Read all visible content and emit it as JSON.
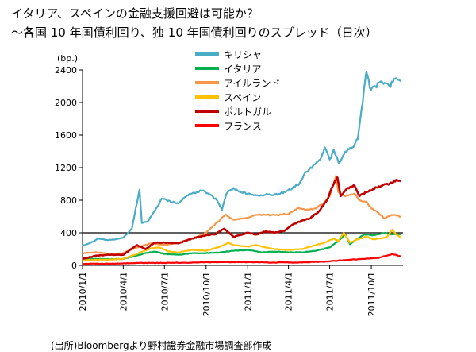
{
  "title_line1": "イタリア、スペインの金融支援回避は可能か？",
  "title_line2": "〜各国 10 年国債利回り、独 10 年国債利回りのスプレッド（日次）",
  "source": "(出所)Bloombergより野村證券金融市場調査部作成",
  "chart_data": {
    "type": "line",
    "title": "",
    "unit_label": "(bp.)",
    "xlabel": "",
    "ylabel": "",
    "ylim": [
      0,
      2400
    ],
    "yticks": [
      0,
      400,
      800,
      1200,
      1600,
      2000,
      2400
    ],
    "xlim": [
      "2010-01-01",
      "2011-12-10"
    ],
    "xticks": [
      {
        "date": "2010-01-01",
        "label": "2010/1/1"
      },
      {
        "date": "2010-04-01",
        "label": "2010/4/1"
      },
      {
        "date": "2010-07-01",
        "label": "2010/7/1"
      },
      {
        "date": "2010-10-01",
        "label": "2010/10/1"
      },
      {
        "date": "2011-01-01",
        "label": "2011/1/1"
      },
      {
        "date": "2011-04-01",
        "label": "2011/4/1"
      },
      {
        "date": "2011-07-01",
        "label": "2011/7/1"
      },
      {
        "date": "2011-10-01",
        "label": "2011/10/1"
      }
    ],
    "reference_line": 400,
    "legend_position": "top-center",
    "grid": false,
    "series": [
      {
        "name": "キリシャ",
        "color": "#4bacc6",
        "points": [
          [
            "2010-01-01",
            240
          ],
          [
            "2010-01-20",
            280
          ],
          [
            "2010-02-05",
            330
          ],
          [
            "2010-02-25",
            310
          ],
          [
            "2010-03-15",
            320
          ],
          [
            "2010-04-01",
            340
          ],
          [
            "2010-04-20",
            450
          ],
          [
            "2010-05-07",
            930
          ],
          [
            "2010-05-12",
            520
          ],
          [
            "2010-05-25",
            540
          ],
          [
            "2010-06-15",
            720
          ],
          [
            "2010-06-25",
            820
          ],
          [
            "2010-07-15",
            780
          ],
          [
            "2010-08-01",
            760
          ],
          [
            "2010-08-20",
            860
          ],
          [
            "2010-09-10",
            900
          ],
          [
            "2010-09-25",
            920
          ],
          [
            "2010-10-10",
            870
          ],
          [
            "2010-10-25",
            800
          ],
          [
            "2010-11-05",
            680
          ],
          [
            "2010-11-15",
            880
          ],
          [
            "2010-11-30",
            950
          ],
          [
            "2010-12-15",
            900
          ],
          [
            "2011-01-01",
            880
          ],
          [
            "2011-01-20",
            860
          ],
          [
            "2011-02-10",
            870
          ],
          [
            "2011-02-25",
            860
          ],
          [
            "2011-03-10",
            880
          ],
          [
            "2011-03-25",
            900
          ],
          [
            "2011-04-10",
            950
          ],
          [
            "2011-04-25",
            1000
          ],
          [
            "2011-05-10",
            1150
          ],
          [
            "2011-05-25",
            1220
          ],
          [
            "2011-06-10",
            1300
          ],
          [
            "2011-06-20",
            1450
          ],
          [
            "2011-07-01",
            1300
          ],
          [
            "2011-07-10",
            1420
          ],
          [
            "2011-07-22",
            1250
          ],
          [
            "2011-08-05",
            1400
          ],
          [
            "2011-08-20",
            1450
          ],
          [
            "2011-09-01",
            1550
          ],
          [
            "2011-09-12",
            2000
          ],
          [
            "2011-09-20",
            2380
          ],
          [
            "2011-09-30",
            2150
          ],
          [
            "2011-10-10",
            2200
          ],
          [
            "2011-10-25",
            2250
          ],
          [
            "2011-11-10",
            2200
          ],
          [
            "2011-11-25",
            2300
          ],
          [
            "2011-12-05",
            2260
          ]
        ]
      },
      {
        "name": "イタリア",
        "color": "#00b050",
        "points": [
          [
            "2010-01-01",
            80
          ],
          [
            "2010-02-01",
            80
          ],
          [
            "2010-03-01",
            75
          ],
          [
            "2010-04-01",
            80
          ],
          [
            "2010-05-01",
            120
          ],
          [
            "2010-05-20",
            150
          ],
          [
            "2010-06-10",
            170
          ],
          [
            "2010-07-01",
            140
          ],
          [
            "2010-08-01",
            130
          ],
          [
            "2010-09-01",
            150
          ],
          [
            "2010-10-01",
            150
          ],
          [
            "2010-11-01",
            160
          ],
          [
            "2010-12-01",
            180
          ],
          [
            "2011-01-01",
            190
          ],
          [
            "2011-02-01",
            160
          ],
          [
            "2011-03-01",
            170
          ],
          [
            "2011-04-01",
            160
          ],
          [
            "2011-05-01",
            160
          ],
          [
            "2011-06-01",
            180
          ],
          [
            "2011-07-01",
            220
          ],
          [
            "2011-07-20",
            300
          ],
          [
            "2011-08-05",
            380
          ],
          [
            "2011-08-15",
            260
          ],
          [
            "2011-09-01",
            330
          ],
          [
            "2011-09-15",
            380
          ],
          [
            "2011-10-01",
            370
          ],
          [
            "2011-10-15",
            380
          ],
          [
            "2011-11-01",
            400
          ],
          [
            "2011-11-15",
            380
          ],
          [
            "2011-12-05",
            380
          ]
        ]
      },
      {
        "name": "アイルランド",
        "color": "#f79646",
        "points": [
          [
            "2010-01-01",
            150
          ],
          [
            "2010-02-01",
            160
          ],
          [
            "2010-03-01",
            140
          ],
          [
            "2010-04-01",
            150
          ],
          [
            "2010-05-01",
            220
          ],
          [
            "2010-06-01",
            270
          ],
          [
            "2010-07-01",
            250
          ],
          [
            "2010-08-01",
            280
          ],
          [
            "2010-09-01",
            330
          ],
          [
            "2010-10-01",
            400
          ],
          [
            "2010-11-01",
            560
          ],
          [
            "2010-11-12",
            620
          ],
          [
            "2010-12-01",
            560
          ],
          [
            "2011-01-01",
            580
          ],
          [
            "2011-01-20",
            620
          ],
          [
            "2011-02-10",
            620
          ],
          [
            "2011-03-01",
            620
          ],
          [
            "2011-04-01",
            630
          ],
          [
            "2011-04-20",
            700
          ],
          [
            "2011-05-10",
            680
          ],
          [
            "2011-06-01",
            700
          ],
          [
            "2011-06-20",
            780
          ],
          [
            "2011-07-01",
            850
          ],
          [
            "2011-07-15",
            1100
          ],
          [
            "2011-07-20",
            900
          ],
          [
            "2011-08-05",
            850
          ],
          [
            "2011-08-25",
            880
          ],
          [
            "2011-09-05",
            800
          ],
          [
            "2011-09-20",
            780
          ],
          [
            "2011-10-01",
            700
          ],
          [
            "2011-10-15",
            650
          ],
          [
            "2011-10-30",
            580
          ],
          [
            "2011-11-15",
            620
          ],
          [
            "2011-12-05",
            600
          ]
        ]
      },
      {
        "name": "スペイン",
        "color": "#ffc000",
        "points": [
          [
            "2010-01-01",
            60
          ],
          [
            "2010-02-01",
            70
          ],
          [
            "2010-03-01",
            70
          ],
          [
            "2010-04-01",
            80
          ],
          [
            "2010-05-01",
            140
          ],
          [
            "2010-06-01",
            210
          ],
          [
            "2010-06-20",
            220
          ],
          [
            "2010-07-10",
            170
          ],
          [
            "2010-08-01",
            160
          ],
          [
            "2010-09-01",
            190
          ],
          [
            "2010-10-01",
            180
          ],
          [
            "2010-11-01",
            230
          ],
          [
            "2010-11-20",
            280
          ],
          [
            "2010-12-01",
            250
          ],
          [
            "2011-01-01",
            230
          ],
          [
            "2011-01-20",
            250
          ],
          [
            "2011-02-10",
            220
          ],
          [
            "2011-03-01",
            200
          ],
          [
            "2011-04-01",
            190
          ],
          [
            "2011-05-01",
            200
          ],
          [
            "2011-06-01",
            250
          ],
          [
            "2011-06-20",
            280
          ],
          [
            "2011-07-10",
            330
          ],
          [
            "2011-07-20",
            300
          ],
          [
            "2011-08-01",
            400
          ],
          [
            "2011-08-15",
            280
          ],
          [
            "2011-09-01",
            320
          ],
          [
            "2011-09-20",
            350
          ],
          [
            "2011-10-05",
            320
          ],
          [
            "2011-10-20",
            330
          ],
          [
            "2011-11-05",
            350
          ],
          [
            "2011-11-17",
            440
          ],
          [
            "2011-11-25",
            380
          ],
          [
            "2011-12-05",
            340
          ]
        ]
      },
      {
        "name": "ポルトガル",
        "color": "#c00000",
        "points": [
          [
            "2010-01-01",
            80
          ],
          [
            "2010-02-01",
            120
          ],
          [
            "2010-03-01",
            130
          ],
          [
            "2010-04-01",
            130
          ],
          [
            "2010-05-01",
            250
          ],
          [
            "2010-05-20",
            200
          ],
          [
            "2010-06-10",
            280
          ],
          [
            "2010-07-01",
            280
          ],
          [
            "2010-08-01",
            270
          ],
          [
            "2010-09-01",
            330
          ],
          [
            "2010-10-01",
            370
          ],
          [
            "2010-10-20",
            380
          ],
          [
            "2010-11-10",
            450
          ],
          [
            "2010-12-01",
            350
          ],
          [
            "2011-01-01",
            400
          ],
          [
            "2011-01-20",
            380
          ],
          [
            "2011-02-10",
            420
          ],
          [
            "2011-03-01",
            400
          ],
          [
            "2011-03-25",
            430
          ],
          [
            "2011-04-10",
            500
          ],
          [
            "2011-05-01",
            550
          ],
          [
            "2011-05-20",
            580
          ],
          [
            "2011-06-10",
            680
          ],
          [
            "2011-06-25",
            800
          ],
          [
            "2011-07-10",
            1000
          ],
          [
            "2011-07-18",
            1080
          ],
          [
            "2011-07-25",
            850
          ],
          [
            "2011-08-10",
            950
          ],
          [
            "2011-08-25",
            980
          ],
          [
            "2011-09-05",
            850
          ],
          [
            "2011-09-20",
            900
          ],
          [
            "2011-10-05",
            940
          ],
          [
            "2011-10-25",
            980
          ],
          [
            "2011-11-10",
            1000
          ],
          [
            "2011-11-25",
            1050
          ],
          [
            "2011-12-05",
            1030
          ]
        ]
      },
      {
        "name": "フランス",
        "color": "#ff0000",
        "points": [
          [
            "2010-01-01",
            20
          ],
          [
            "2010-03-01",
            20
          ],
          [
            "2010-05-01",
            30
          ],
          [
            "2010-07-01",
            30
          ],
          [
            "2010-09-01",
            35
          ],
          [
            "2010-11-01",
            40
          ],
          [
            "2011-01-01",
            40
          ],
          [
            "2011-03-01",
            35
          ],
          [
            "2011-05-01",
            35
          ],
          [
            "2011-07-01",
            50
          ],
          [
            "2011-08-15",
            70
          ],
          [
            "2011-09-15",
            80
          ],
          [
            "2011-10-15",
            90
          ],
          [
            "2011-11-17",
            140
          ],
          [
            "2011-12-05",
            110
          ]
        ]
      }
    ]
  }
}
